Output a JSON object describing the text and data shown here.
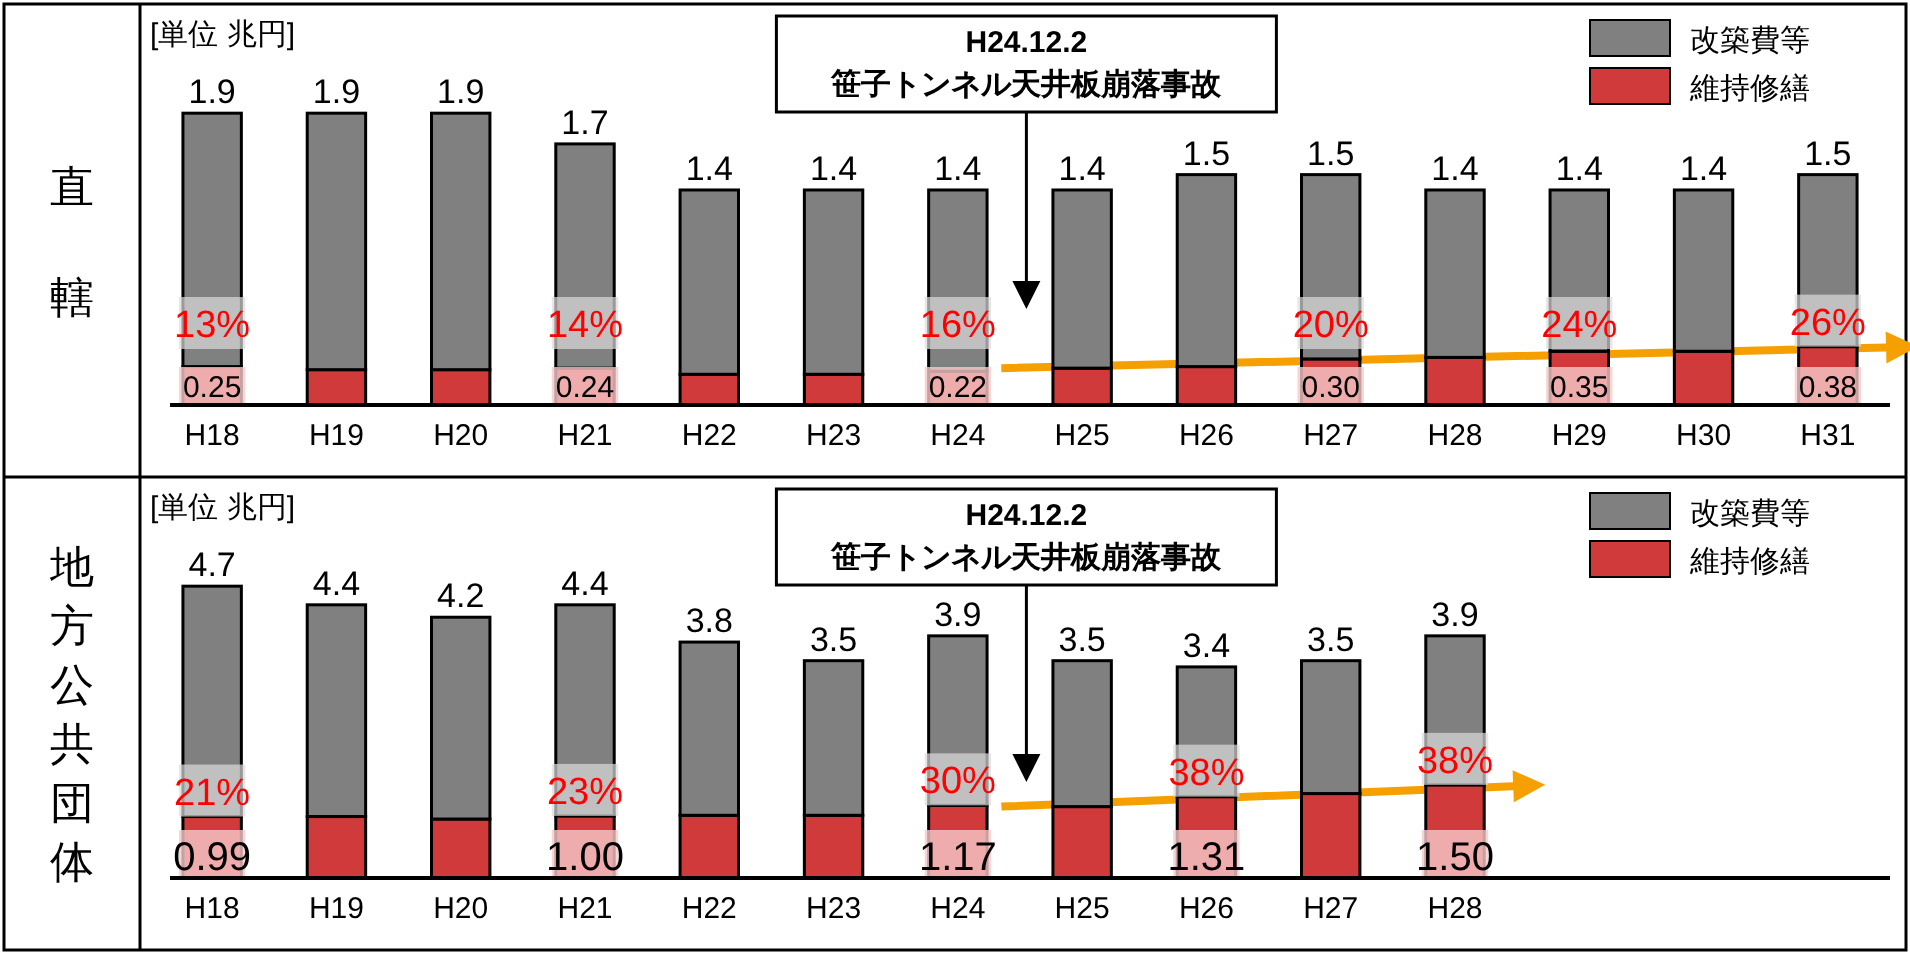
{
  "chart_data": [
    {
      "type": "bar",
      "stacked": true,
      "title": "直轄",
      "ylabel": "[単位 兆円]",
      "legend": "top right",
      "tick_labels": "x",
      "categories": [
        "H18",
        "H19",
        "H20",
        "H21",
        "H22",
        "H23",
        "H24",
        "H25",
        "H26",
        "H27",
        "H28",
        "H29",
        "H30",
        "H31"
      ],
      "series": [
        {
          "name": "維持修繕",
          "color": "#d03a3a",
          "values": [
            0.25,
            0.23,
            0.23,
            0.24,
            0.2,
            0.2,
            0.22,
            0.24,
            0.25,
            0.3,
            0.31,
            0.35,
            0.35,
            0.38
          ],
          "value_labels": [
            "0.25",
            null,
            null,
            "0.24",
            null,
            null,
            "0.22",
            null,
            null,
            "0.30",
            null,
            "0.35",
            null,
            "0.38"
          ]
        },
        {
          "name": "改築費等",
          "color": "#808080",
          "values": [
            1.65,
            1.67,
            1.67,
            1.46,
            1.2,
            1.2,
            1.18,
            1.16,
            1.25,
            1.2,
            1.09,
            1.05,
            1.05,
            1.12
          ]
        }
      ],
      "totals": [
        "1.9",
        "1.9",
        "1.9",
        "1.7",
        "1.4",
        "1.4",
        "1.4",
        "1.4",
        "1.5",
        "1.5",
        "1.4",
        "1.4",
        "1.4",
        "1.5"
      ],
      "annotations": [
        "H24.12.2\n笹子トンネル天井板崩落事故",
        "13%",
        "14%",
        "16%",
        "20%",
        "24%",
        "26%"
      ]
    },
    {
      "type": "bar",
      "stacked": true,
      "title": "地方公共団体",
      "ylabel": "[単位 兆円]",
      "legend": "top right",
      "tick_labels": "x",
      "categories": [
        "H18",
        "H19",
        "H20",
        "H21",
        "H22",
        "H23",
        "H24",
        "H25",
        "H26",
        "H27",
        "H28",
        null,
        null,
        null
      ],
      "series": [
        {
          "name": "維持修繕",
          "color": "#d03a3a",
          "values": [
            0.99,
            0.99,
            0.95,
            1.0,
            1.01,
            1.01,
            1.17,
            1.15,
            1.31,
            1.36,
            1.5,
            null,
            null,
            null
          ],
          "value_labels": [
            "0.99",
            null,
            null,
            "1.00",
            null,
            null,
            "1.17",
            null,
            "1.31",
            null,
            "1.50",
            null,
            null,
            null
          ]
        },
        {
          "name": "改築費等",
          "color": "#808080",
          "values": [
            3.71,
            3.41,
            3.25,
            3.4,
            2.79,
            2.49,
            2.73,
            2.35,
            2.09,
            2.14,
            2.4,
            null,
            null,
            null
          ]
        }
      ],
      "totals": [
        "4.7",
        "4.4",
        "4.2",
        "4.4",
        "3.8",
        "3.5",
        "3.9",
        "3.5",
        "3.4",
        "3.5",
        "3.9",
        null,
        null,
        null
      ],
      "annotations": [
        "H24.12.2\n笹子トンネル天井板崩落事故",
        "21%",
        "23%",
        "30%",
        "38%",
        "38%"
      ]
    }
  ]
}
